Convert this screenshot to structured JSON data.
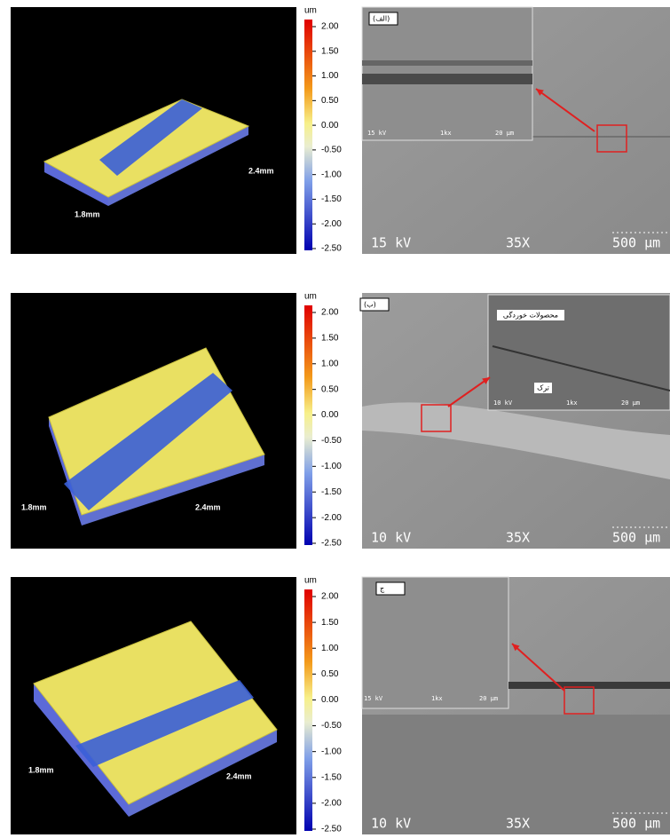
{
  "panels": [
    {
      "profile": {
        "unit": "um",
        "scale": [
          "2.00",
          "1.50",
          "1.00",
          "0.50",
          "0.00",
          "-0.50",
          "-1.00",
          "-1.50",
          "-2.00",
          "-2.50"
        ],
        "width_label": "1.8mm",
        "length_label": "2.4mm"
      },
      "sem": {
        "voltage": "15 kV",
        "magnification": "35X",
        "scale_bar": "500 μm",
        "inset": {
          "tag": "(الف)",
          "voltage": "15 kV",
          "magnification": "1kx",
          "scale_bar": "20 μm"
        }
      }
    },
    {
      "profile": {
        "unit": "um",
        "scale": [
          "2.00",
          "1.50",
          "1.00",
          "0.50",
          "0.00",
          "-0.50",
          "-1.00",
          "-1.50",
          "-2.00",
          "-2.50"
        ],
        "width_label": "1.8mm",
        "length_label": "2.4mm"
      },
      "sem": {
        "voltage": "10 kV",
        "magnification": "35X",
        "scale_bar": "500 μm",
        "inset": {
          "tag": "(ب)",
          "voltage": "10 kV",
          "magnification": "1kx",
          "scale_bar": "20 μm",
          "label_products": "محصولات خوردگی",
          "label_crack": "ترک"
        }
      }
    },
    {
      "profile": {
        "unit": "um",
        "scale": [
          "2.00",
          "1.50",
          "1.00",
          "0.50",
          "0.00",
          "-0.50",
          "-1.00",
          "-1.50",
          "-2.00",
          "-2.50"
        ],
        "width_label": "1.8mm",
        "length_label": "2.4mm"
      },
      "sem": {
        "voltage": "10 kV",
        "magnification": "35X",
        "scale_bar": "500 μm",
        "inset": {
          "tag": "ج",
          "voltage": "15 kV",
          "magnification": "1kx",
          "scale_bar": "20 μm"
        }
      }
    }
  ]
}
